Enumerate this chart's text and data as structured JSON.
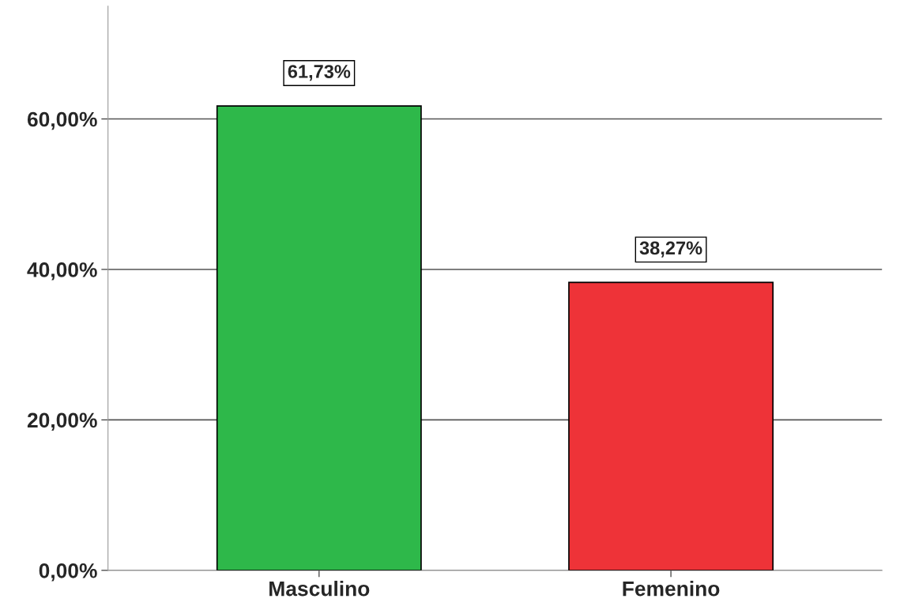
{
  "chart_data": {
    "type": "bar",
    "categories": [
      "Masculino",
      "Femenino"
    ],
    "values": [
      61.73,
      38.27
    ],
    "colors": [
      "#2eb84a",
      "#ee3338"
    ],
    "value_labels": [
      "61,73%",
      "38,27%"
    ],
    "ylim": [
      0,
      75
    ],
    "yticks": [
      {
        "value": 0,
        "label": "0,00%"
      },
      {
        "value": 20,
        "label": "20,00%"
      },
      {
        "value": 40,
        "label": "40,00%"
      },
      {
        "value": 60,
        "label": "60,00%"
      }
    ],
    "grid": "y"
  }
}
